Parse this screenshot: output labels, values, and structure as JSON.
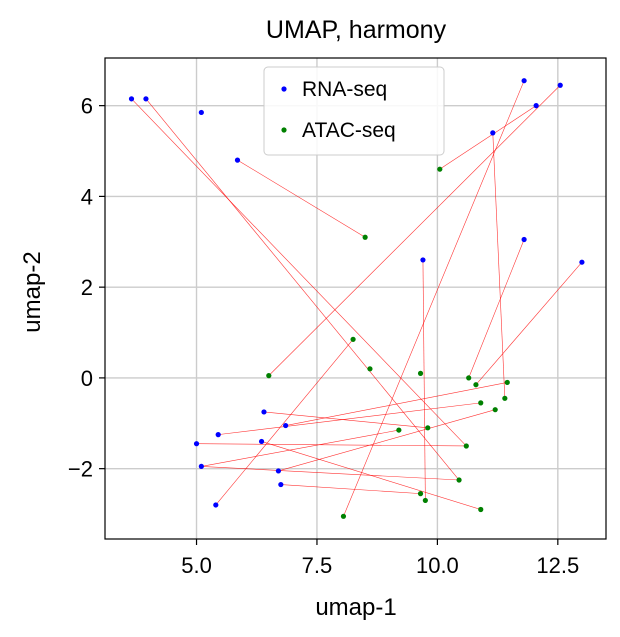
{
  "chart_data": {
    "type": "scatter",
    "title": "UMAP, harmony",
    "xlabel": "umap-1",
    "ylabel": "umap-2",
    "xlim": [
      3.1,
      13.5
    ],
    "ylim": [
      -3.55,
      7.05
    ],
    "xticks": [
      5.0,
      7.5,
      10.0,
      12.5
    ],
    "xtick_labels": [
      "5.0",
      "7.5",
      "10.0",
      "12.5"
    ],
    "yticks": [
      -2,
      0,
      2,
      4,
      6
    ],
    "ytick_labels": [
      "−2",
      "0",
      "2",
      "4",
      "6"
    ],
    "grid": true,
    "legend_placement": "upper-center",
    "series": [
      {
        "name": "RNA-seq",
        "color": "#0000ff",
        "points": [
          [
            3.65,
            6.15
          ],
          [
            3.95,
            6.15
          ],
          [
            5.1,
            5.85
          ],
          [
            5.85,
            4.8
          ],
          [
            12.55,
            6.45
          ],
          [
            11.8,
            6.55
          ],
          [
            12.05,
            6.0
          ],
          [
            11.15,
            5.4
          ],
          [
            11.8,
            3.05
          ],
          [
            9.7,
            2.6
          ],
          [
            13.0,
            2.55
          ],
          [
            6.4,
            -0.75
          ],
          [
            5.45,
            -1.25
          ],
          [
            6.85,
            -1.05
          ],
          [
            5.0,
            -1.45
          ],
          [
            6.35,
            -1.4
          ],
          [
            5.1,
            -1.95
          ],
          [
            6.7,
            -2.05
          ],
          [
            6.75,
            -2.35
          ],
          [
            5.4,
            -2.8
          ]
        ]
      },
      {
        "name": "ATAC-seq",
        "color": "#008000",
        "points": [
          [
            10.05,
            4.6
          ],
          [
            8.5,
            3.1
          ],
          [
            8.25,
            0.85
          ],
          [
            8.6,
            0.2
          ],
          [
            6.5,
            0.05
          ],
          [
            9.65,
            0.1
          ],
          [
            10.65,
            0.0
          ],
          [
            10.8,
            -0.15
          ],
          [
            11.45,
            -0.1
          ],
          [
            11.4,
            -0.45
          ],
          [
            10.9,
            -0.55
          ],
          [
            11.2,
            -0.7
          ],
          [
            9.2,
            -1.15
          ],
          [
            9.8,
            -1.1
          ],
          [
            10.6,
            -1.5
          ],
          [
            10.45,
            -2.25
          ],
          [
            9.65,
            -2.55
          ],
          [
            9.75,
            -2.7
          ],
          [
            10.9,
            -2.9
          ],
          [
            8.05,
            -3.05
          ]
        ]
      }
    ],
    "links": {
      "color": "#ff0000",
      "pairs": [
        [
          [
            3.65,
            6.15
          ],
          [
            10.6,
            -1.5
          ]
        ],
        [
          [
            3.95,
            6.15
          ],
          [
            10.45,
            -2.25
          ]
        ],
        [
          [
            5.85,
            4.8
          ],
          [
            8.5,
            3.1
          ]
        ],
        [
          [
            12.55,
            6.45
          ],
          [
            6.5,
            0.05
          ]
        ],
        [
          [
            11.8,
            6.55
          ],
          [
            8.05,
            -3.05
          ]
        ],
        [
          [
            12.05,
            6.0
          ],
          [
            10.05,
            4.6
          ]
        ],
        [
          [
            11.15,
            5.4
          ],
          [
            11.4,
            -0.45
          ]
        ],
        [
          [
            11.8,
            3.05
          ],
          [
            10.65,
            0.0
          ]
        ],
        [
          [
            9.7,
            2.6
          ],
          [
            9.75,
            -2.7
          ]
        ],
        [
          [
            13.0,
            2.55
          ],
          [
            10.8,
            -0.15
          ]
        ],
        [
          [
            6.4,
            -0.75
          ],
          [
            9.8,
            -1.1
          ]
        ],
        [
          [
            5.45,
            -1.25
          ],
          [
            10.9,
            -0.55
          ]
        ],
        [
          [
            6.85,
            -1.05
          ],
          [
            11.45,
            -0.1
          ]
        ],
        [
          [
            6.35,
            -1.4
          ],
          [
            10.9,
            -2.9
          ]
        ],
        [
          [
            5.1,
            -1.95
          ],
          [
            9.2,
            -1.15
          ]
        ],
        [
          [
            5.1,
            -1.95
          ],
          [
            10.45,
            -2.25
          ]
        ],
        [
          [
            6.7,
            -2.05
          ],
          [
            11.2,
            -0.7
          ]
        ],
        [
          [
            6.75,
            -2.35
          ],
          [
            9.65,
            -2.55
          ]
        ],
        [
          [
            5.4,
            -2.8
          ],
          [
            8.25,
            0.85
          ]
        ],
        [
          [
            5.0,
            -1.45
          ],
          [
            10.6,
            -1.5
          ]
        ]
      ]
    }
  }
}
